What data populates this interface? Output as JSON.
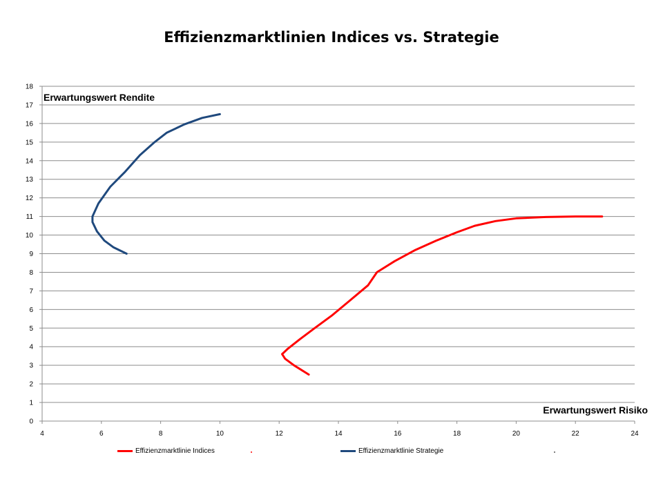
{
  "chart_data": {
    "type": "line",
    "title": "Effizienzmarktlinien Indices vs. Strategie",
    "xlabel": "Erwartungswert Risiko",
    "ylabel": "Erwartungswert Rendite",
    "xlim": [
      4,
      24
    ],
    "ylim": [
      0,
      18
    ],
    "x_ticks": [
      4,
      6,
      8,
      10,
      12,
      14,
      16,
      18,
      20,
      22,
      24
    ],
    "y_ticks": [
      0,
      1,
      2,
      3,
      4,
      5,
      6,
      7,
      8,
      9,
      10,
      11,
      12,
      13,
      14,
      15,
      16,
      17,
      18
    ],
    "grid": "horizontal",
    "legend_position": "bottom",
    "series": [
      {
        "name": "Effizienzmarktlinie Indices",
        "color": "#ff0000",
        "points": [
          [
            13.0,
            2.5
          ],
          [
            12.5,
            3.0
          ],
          [
            12.2,
            3.35
          ],
          [
            12.1,
            3.6
          ],
          [
            12.3,
            3.9
          ],
          [
            12.7,
            4.4
          ],
          [
            13.2,
            5.0
          ],
          [
            13.8,
            5.7
          ],
          [
            14.4,
            6.5
          ],
          [
            15.0,
            7.3
          ],
          [
            15.3,
            8.0
          ],
          [
            15.9,
            8.6
          ],
          [
            16.6,
            9.2
          ],
          [
            17.3,
            9.7
          ],
          [
            18.0,
            10.15
          ],
          [
            18.6,
            10.5
          ],
          [
            19.3,
            10.75
          ],
          [
            20.0,
            10.9
          ],
          [
            21.0,
            10.97
          ],
          [
            22.0,
            11.0
          ],
          [
            22.9,
            11.0
          ]
        ]
      },
      {
        "name": "Effizienzmarktlinie Strategie",
        "color": "#1f497d",
        "points": [
          [
            6.85,
            9.0
          ],
          [
            6.4,
            9.35
          ],
          [
            6.1,
            9.7
          ],
          [
            5.85,
            10.2
          ],
          [
            5.7,
            10.7
          ],
          [
            5.7,
            11.0
          ],
          [
            5.9,
            11.7
          ],
          [
            6.3,
            12.6
          ],
          [
            6.8,
            13.4
          ],
          [
            7.3,
            14.3
          ],
          [
            7.8,
            15.0
          ],
          [
            8.2,
            15.5
          ],
          [
            8.8,
            15.95
          ],
          [
            9.4,
            16.3
          ],
          [
            10.0,
            16.5
          ]
        ]
      }
    ]
  }
}
